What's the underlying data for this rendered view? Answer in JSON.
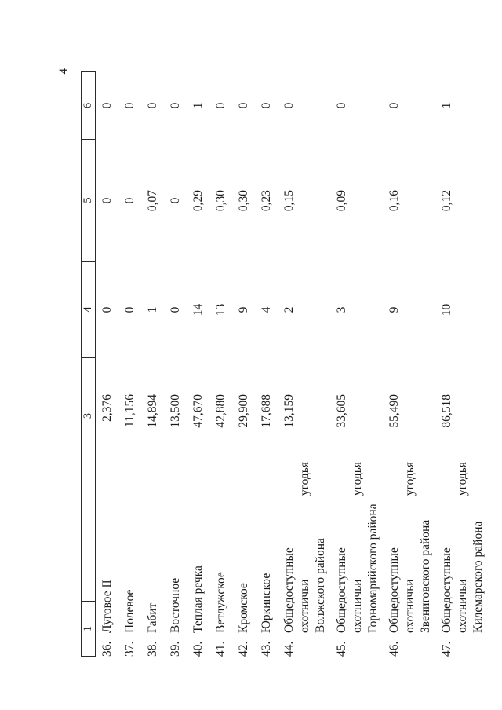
{
  "page": {
    "number": "4"
  },
  "colors": {
    "text": "#1c1c1c",
    "border": "#2b2b2b",
    "background": "#ffffff"
  },
  "table": {
    "header": {
      "columns": [
        "1",
        "",
        "3",
        "4",
        "5",
        "6"
      ]
    },
    "rows": [
      {
        "num": "36.",
        "name": "Луговое II",
        "col3": "2,376",
        "col4": "0",
        "col5": "0",
        "col6": "0"
      },
      {
        "num": "37.",
        "name": "Полевое",
        "col3": "11,156",
        "col4": "0",
        "col5": "0",
        "col6": "0"
      },
      {
        "num": "38.",
        "name": "Габит",
        "col3": "14,894",
        "col4": "1",
        "col5": "0,07",
        "col6": "0"
      },
      {
        "num": "39.",
        "name": "Восточное",
        "col3": "13,500",
        "col4": "0",
        "col5": "0",
        "col6": "0"
      },
      {
        "num": "40.",
        "name": "Теплая речка",
        "col3": "47,670",
        "col4": "14",
        "col5": "0,29",
        "col6": "1"
      },
      {
        "num": "41.",
        "name": "Ветлужское",
        "col3": "42,880",
        "col4": "13",
        "col5": "0,30",
        "col6": "0"
      },
      {
        "num": "42.",
        "name": "Кромское",
        "col3": "29,900",
        "col4": "9",
        "col5": "0,30",
        "col6": "0"
      },
      {
        "num": "43.",
        "name": "Юркинское",
        "col3": "17,688",
        "col4": "4",
        "col5": "0,23",
        "col6": "0"
      },
      {
        "num": "44.",
        "name": "Общедоступные",
        "line2_left": "охотничьи",
        "line2_right": "угодья",
        "line3": "Волжского района",
        "col3": "13,159",
        "col4": "2",
        "col5": "0,15",
        "col6": "0"
      },
      {
        "num": "45.",
        "name": "Общедоступные",
        "line2_left": "охотничьи",
        "line2_right": "угодья",
        "line3": "Горномарийского района",
        "col3": "33,605",
        "col4": "3",
        "col5": "0,09",
        "col6": "0"
      },
      {
        "num": "46.",
        "name": "Общедоступные",
        "line2_left": "охотничьи",
        "line2_right": "угодья",
        "line3": "Звениговского района",
        "col3": "55,490",
        "col4": "9",
        "col5": "0,16",
        "col6": "0"
      },
      {
        "num": "47.",
        "name": "Общедоступные",
        "line2_left": "охотничьи",
        "line2_right": "угодья",
        "line3": "Килемарского района",
        "col3": "86,518",
        "col4": "10",
        "col5": "0,12",
        "col6": "1"
      }
    ]
  }
}
